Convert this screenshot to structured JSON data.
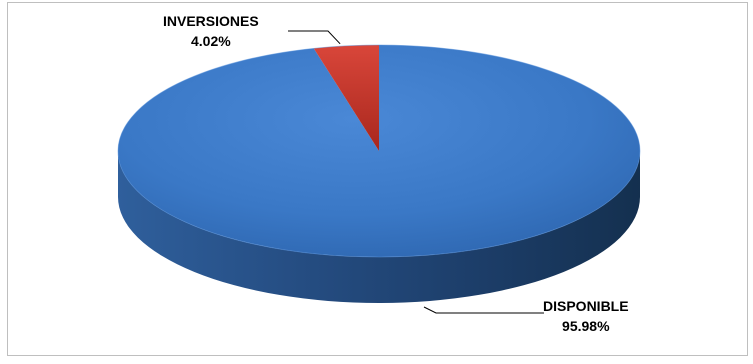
{
  "chart_data": {
    "type": "pie",
    "style": "3d",
    "title": "",
    "slices": [
      {
        "label": "DISPONIBLE",
        "value": 95.98,
        "value_text": "95.98%",
        "color": "#3a78c6"
      },
      {
        "label": "INVERSIONES",
        "value": 4.02,
        "value_text": "4.02%",
        "color": "#c0392b"
      }
    ],
    "legend": "none",
    "data_labels": "outside-with-leader-lines"
  }
}
